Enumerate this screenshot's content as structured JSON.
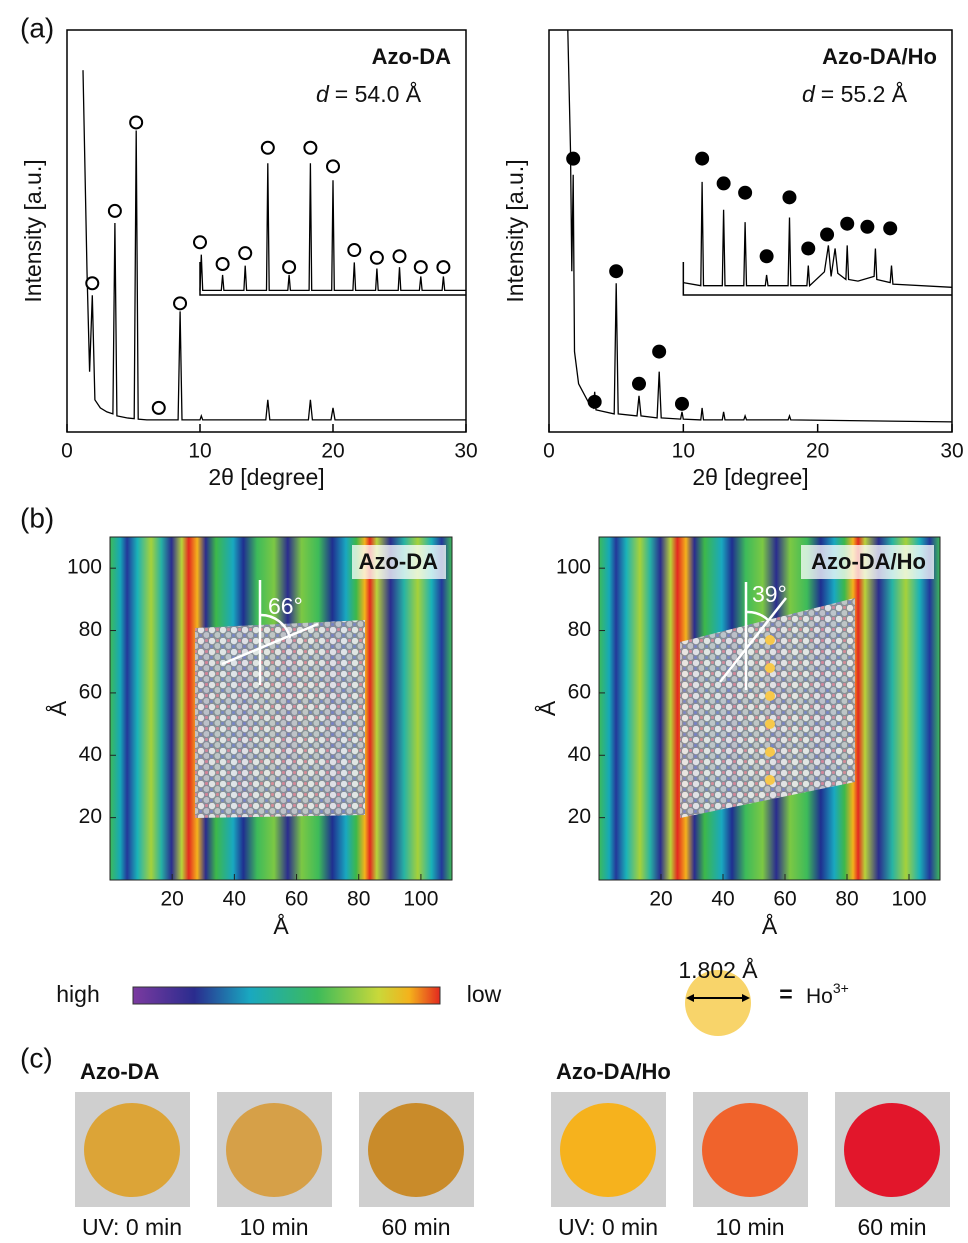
{
  "panel_labels": [
    "(a)",
    "(b)",
    "(c)"
  ],
  "chart_data": [
    {
      "type": "line",
      "title": "Azo-DA",
      "d_symbol": "d",
      "d_value": "= 54.0 Å",
      "x_label": "2θ [degree]",
      "y_label": "Intensity [a.u.]",
      "xlim": [
        0,
        30
      ],
      "ylim": [
        0,
        100
      ],
      "xticks": [
        0,
        10,
        20,
        30
      ],
      "color": "#000000",
      "x": [
        1.2,
        1.5,
        1.7,
        1.9,
        2.1,
        2.5,
        3.0,
        3.45,
        3.6,
        3.75,
        4.5,
        5.05,
        5.2,
        5.35,
        6.0,
        8.35,
        8.5,
        8.65,
        10.0,
        10.1,
        10.2,
        14.95,
        15.1,
        15.25,
        18.15,
        18.3,
        18.45,
        19.85,
        20.0,
        20.15,
        30
      ],
      "values": [
        90,
        40,
        15,
        34,
        8,
        6,
        5,
        4.5,
        52,
        4,
        3.5,
        3.3,
        75,
        3.2,
        3,
        3,
        30,
        3,
        3,
        4,
        3,
        3,
        8,
        3,
        3,
        8,
        3,
        3,
        6,
        3,
        3
      ],
      "markers": {
        "style": "open",
        "x": [
          1.9,
          3.6,
          5.2,
          6.9,
          8.5
        ],
        "values": [
          37,
          55,
          77,
          6,
          32
        ]
      },
      "inset": {
        "xlim": [
          10,
          30
        ],
        "ylim": [
          0,
          100
        ],
        "x": [
          10,
          10.1,
          10.2,
          11.6,
          11.7,
          11.8,
          13.3,
          13.4,
          13.5,
          15.0,
          15.1,
          15.2,
          16.6,
          16.7,
          16.8,
          18.2,
          18.3,
          18.4,
          19.9,
          20.0,
          20.1,
          21.5,
          21.6,
          21.7,
          23.2,
          23.3,
          23.4,
          24.9,
          25.0,
          25.1,
          26.5,
          26.6,
          26.7,
          28.2,
          28.3,
          28.4,
          30
        ],
        "values": [
          3,
          26,
          3,
          3,
          13,
          3,
          3,
          19,
          3,
          3,
          85,
          3,
          3,
          13,
          3,
          3,
          85,
          3,
          3,
          74,
          3,
          3,
          21,
          3,
          3,
          17,
          3,
          3,
          18,
          3,
          3,
          12,
          3,
          3,
          12,
          3,
          3
        ],
        "markers": {
          "style": "open",
          "x": [
            10.0,
            11.7,
            13.4,
            15.1,
            16.7,
            18.3,
            20.0,
            21.6,
            23.3,
            25.0,
            26.6,
            28.3
          ],
          "values": [
            34,
            20,
            27,
            95,
            18,
            95,
            83,
            29,
            24,
            25,
            18,
            18
          ]
        }
      }
    },
    {
      "type": "line",
      "title": "Azo-DA/Ho",
      "d_symbol": "d",
      "d_value": "= 55.2 Å",
      "x_label": "2θ [degree]",
      "y_label": "Intensity [a.u.]",
      "xlim": [
        0,
        30
      ],
      "ylim": [
        0,
        100
      ],
      "xticks": [
        0,
        10,
        20,
        30
      ],
      "color": "#000000",
      "x": [
        1.4,
        1.6,
        1.7,
        1.8,
        1.9,
        2.2,
        3.0,
        3.3,
        3.4,
        3.5,
        4.85,
        5.0,
        5.15,
        6.55,
        6.7,
        6.85,
        8.05,
        8.2,
        8.35,
        9.8,
        9.9,
        10.0,
        11.3,
        11.4,
        11.5,
        12.9,
        13,
        13.1,
        14.5,
        14.6,
        14.7,
        17.8,
        17.9,
        18.0,
        30
      ],
      "values": [
        100,
        70,
        40,
        64,
        20,
        12,
        7,
        6,
        10,
        5.5,
        4.5,
        37,
        4.5,
        4,
        9,
        4,
        3.5,
        15,
        3.5,
        3.2,
        5,
        3.2,
        3,
        6,
        3,
        3,
        5,
        3,
        3,
        4,
        3,
        3,
        4,
        3,
        2.5
      ],
      "markers": {
        "style": "filled",
        "x": [
          1.8,
          3.4,
          5.0,
          6.7,
          8.2,
          9.9
        ],
        "values": [
          68,
          7.5,
          40,
          12,
          20,
          7
        ]
      },
      "inset": {
        "xlim": [
          10,
          30
        ],
        "ylim": [
          0,
          100
        ],
        "x": [
          10,
          11.3,
          11.4,
          11.5,
          12.9,
          13.0,
          13.1,
          14.5,
          14.6,
          14.7,
          16.1,
          16.2,
          16.3,
          17.8,
          17.9,
          18.0,
          19.2,
          19.3,
          19.4,
          20.5,
          20.8,
          21.0,
          21.3,
          21.5,
          22.1,
          22.2,
          22.3,
          23.0,
          24.2,
          24.3,
          24.4,
          25.4,
          25.5,
          25.6,
          30
        ],
        "values": [
          8,
          6,
          73,
          6,
          6,
          55,
          6,
          6,
          47,
          6,
          6,
          13,
          6,
          6,
          50,
          6,
          6,
          19,
          6,
          15,
          32,
          12,
          30,
          14,
          10,
          32,
          10,
          9,
          12,
          30,
          10,
          8,
          19,
          7,
          5
        ],
        "markers": {
          "style": "filled",
          "x": [
            11.4,
            13.0,
            14.6,
            16.2,
            17.9,
            19.3,
            20.7,
            22.2,
            23.7,
            25.4
          ],
          "values": [
            88,
            72,
            66,
            25,
            63,
            30,
            39,
            46,
            44,
            43
          ]
        }
      }
    },
    {
      "type": "heatmap",
      "title": "Azo-DA",
      "angle_label": "66°",
      "x_label": "Å",
      "y_label": "Å",
      "xlim": [
        0,
        110
      ],
      "ylim": [
        0,
        110
      ],
      "xticks": [
        20,
        40,
        60,
        80,
        100
      ],
      "yticks": [
        20,
        40,
        60,
        80,
        100
      ]
    },
    {
      "type": "heatmap",
      "title": "Azo-DA/Ho",
      "angle_label": "39°",
      "x_label": "Å",
      "y_label": "Å",
      "xlim": [
        0,
        110
      ],
      "ylim": [
        0,
        110
      ],
      "xticks": [
        20,
        40,
        60,
        80,
        100
      ],
      "yticks": [
        20,
        40,
        60,
        80,
        100
      ]
    }
  ],
  "colorbar": {
    "high": "high",
    "low": "low"
  },
  "ho_legend": {
    "size": "1.802 Å",
    "eq": "=",
    "ion": "Ho",
    "charge": "3+"
  },
  "photos": [
    {
      "sample": "Azo-DA",
      "labels": [
        "UV: 0 min",
        "10 min",
        "60 min"
      ],
      "colors": [
        "#dca437",
        "#d6a048",
        "#c98b2a"
      ]
    },
    {
      "sample": "Azo-DA/Ho",
      "labels": [
        "UV: 0 min",
        "10 min",
        "60 min"
      ],
      "colors": [
        "#f6b21d",
        "#f0632c",
        "#e2162b"
      ]
    }
  ]
}
